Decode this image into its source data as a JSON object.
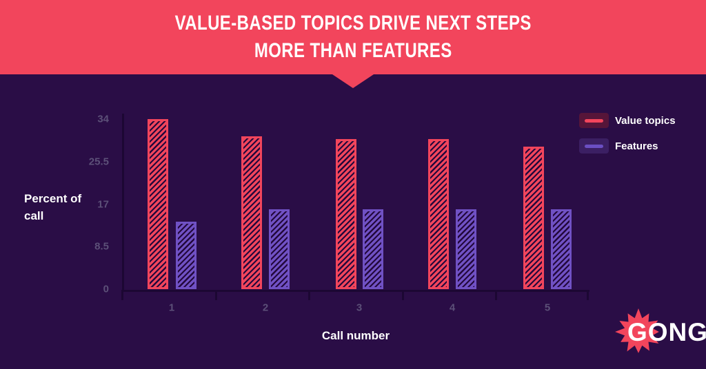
{
  "banner": {
    "title_line1": "VALUE-BASED TOPICS DRIVE NEXT STEPS",
    "title_line2": "MORE THAN FEATURES"
  },
  "colors": {
    "background": "#2A0D46",
    "banner_red": "#F2455C",
    "bar_red": "#F2455C",
    "bar_purple": "#7051C4",
    "hatch_dark": "#23083C",
    "axis_line": "#1C0733",
    "tick_label": "#5C5078",
    "text_white": "#FFFFFF"
  },
  "chart_data": {
    "type": "bar",
    "title": "Value-based topics drive next steps more than features",
    "categories": [
      "1",
      "2",
      "3",
      "4",
      "5"
    ],
    "series": [
      {
        "name": "Value topics",
        "color": "#F2455C",
        "values": [
          34,
          30.5,
          30,
          30,
          28.5
        ]
      },
      {
        "name": "Features",
        "color": "#7051C4",
        "values": [
          13.5,
          16,
          16,
          16,
          16
        ]
      }
    ],
    "xlabel": "Call number",
    "ylabel": "Percent of call",
    "yticks": [
      34,
      25.5,
      17,
      8.5,
      0
    ],
    "ylim": [
      0,
      34
    ],
    "grid": false,
    "legend_position": "top-right",
    "bar_style": "diagonal-hatch"
  },
  "legend": {
    "items": [
      {
        "label": "Value topics",
        "color": "#F2455C",
        "bg": "#561539"
      },
      {
        "label": "Features",
        "color": "#6B4FC2",
        "bg": "#3B1F63"
      }
    ]
  },
  "footer": {
    "logo_text": "GONG"
  }
}
